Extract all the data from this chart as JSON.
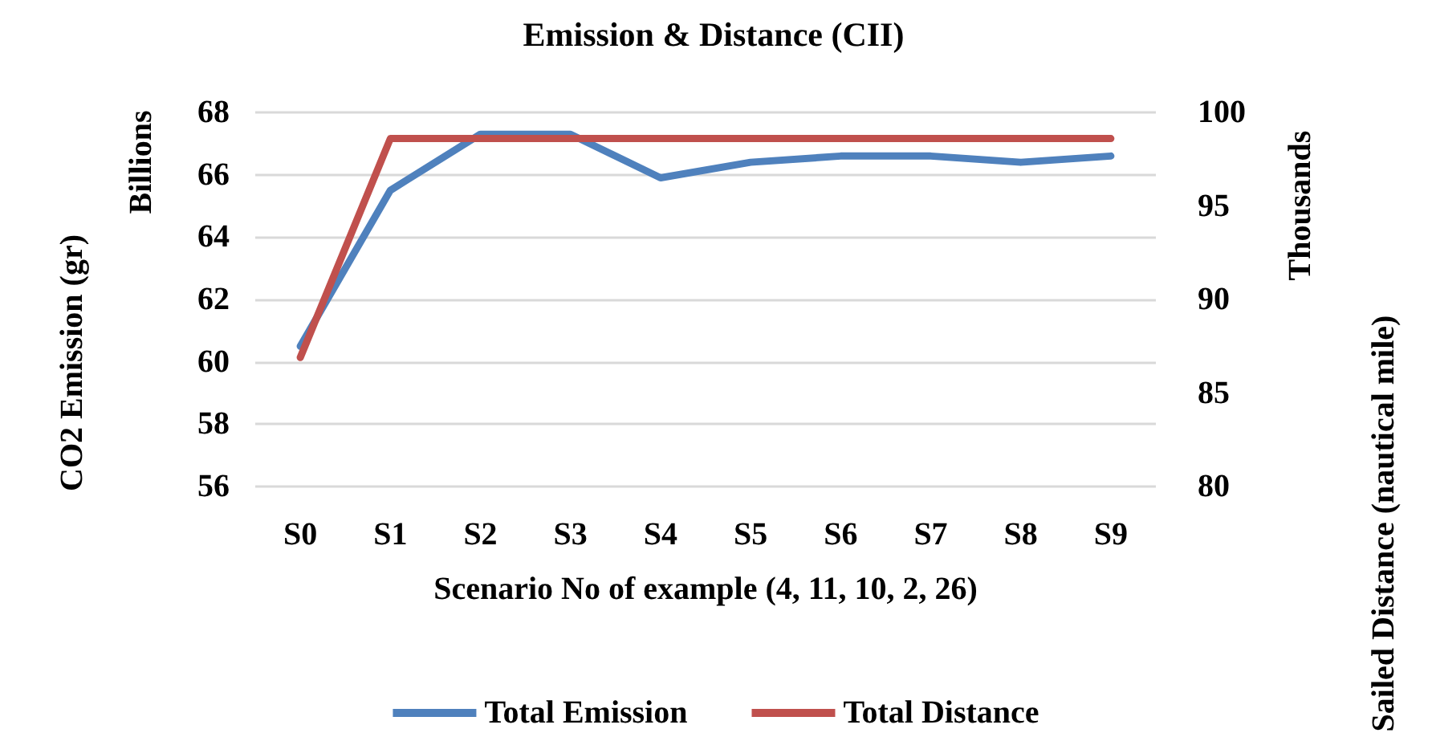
{
  "chart_data": {
    "type": "line",
    "title": "Emission & Distance (CII)",
    "xlabel": "Scenario No of example (4, 11, 10, 2, 26)",
    "ylabel": "CO2 Emission (gr)",
    "y2label": "Sailed Distance (nautical mile)",
    "annotations": [
      "Billions",
      "Thousands"
    ],
    "categories": [
      "S0",
      "S1",
      "S2",
      "S3",
      "S4",
      "S5",
      "S6",
      "S7",
      "S8",
      "S9"
    ],
    "series": [
      {
        "name": "Total Emission",
        "color": "#4f81bd",
        "values": [
          60.5,
          65.5,
          67.3,
          67.3,
          65.9,
          66.4,
          66.6,
          66.6,
          66.4,
          66.6
        ]
      },
      {
        "name": "Total Distance",
        "color": "#c0504d",
        "axis": "y2",
        "values": [
          86.9,
          98.6,
          98.6,
          98.6,
          98.6,
          98.6,
          98.6,
          98.6,
          98.6,
          98.6
        ]
      }
    ],
    "ylim": [
      56,
      68
    ],
    "yticks": [
      56,
      58,
      60,
      62,
      64,
      66,
      68
    ],
    "y2lim": [
      80,
      100
    ],
    "y2ticks": [
      80,
      85,
      90,
      95,
      100
    ],
    "grid": "y",
    "legend": "bottom",
    "marker": "none",
    "line_style": "solid"
  }
}
